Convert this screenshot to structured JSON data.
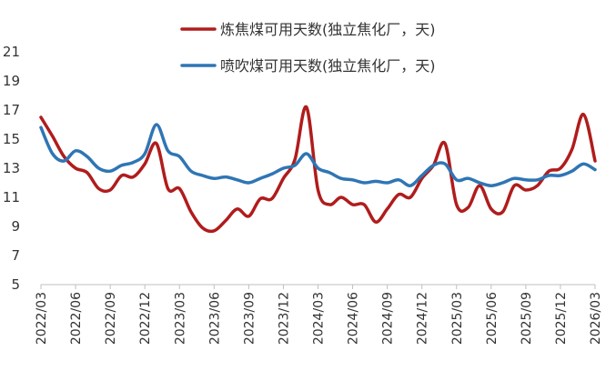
{
  "chart_data": {
    "type": "line",
    "title": "",
    "xlabel": "",
    "ylabel": "",
    "ylim": [
      5,
      21
    ],
    "yticks": [
      5,
      7,
      9,
      11,
      13,
      15,
      17,
      19,
      21
    ],
    "ytick_labels": [
      "5",
      "7",
      "9",
      "11",
      "13",
      "15",
      "17",
      "19",
      "21"
    ],
    "xlim": [
      "2022/03",
      "2026/03"
    ],
    "xtick_labels": [
      "2022/03",
      "2022/06",
      "2022/09",
      "2022/12",
      "2023/03",
      "2023/06",
      "2023/09",
      "2023/12",
      "2024/03",
      "2024/06",
      "2024/09",
      "2024/12",
      "2025/03",
      "2025/06",
      "2025/09",
      "2025/12",
      "2026/03"
    ],
    "grid": false,
    "legend_position": "top-center",
    "series": [
      {
        "name": "炼焦煤可用天数(独立焦化厂，天)",
        "color": "#B01C1C",
        "x": [
          "2022/03",
          "2022/04",
          "2022/05",
          "2022/06",
          "2022/07",
          "2022/08",
          "2022/09",
          "2022/10",
          "2022/11",
          "2022/12",
          "2023/01",
          "2023/02",
          "2023/03",
          "2023/04",
          "2023/05",
          "2023/06",
          "2023/07",
          "2023/08",
          "2023/09",
          "2023/10",
          "2023/11",
          "2023/12",
          "2024/01",
          "2024/02",
          "2024/03",
          "2024/04",
          "2024/05",
          "2024/06",
          "2024/07",
          "2024/08",
          "2024/09",
          "2024/10",
          "2024/11",
          "2024/12",
          "2025/01",
          "2025/02",
          "2025/03",
          "2025/04",
          "2025/05",
          "2025/06",
          "2025/07",
          "2025/08",
          "2025/09",
          "2025/10",
          "2025/11",
          "2025/12",
          "2026/01",
          "2026/02",
          "2026/03"
        ],
        "values": [
          16.5,
          15.2,
          13.8,
          13.0,
          12.7,
          11.6,
          11.5,
          12.5,
          12.4,
          13.3,
          14.7,
          11.6,
          11.6,
          10.0,
          8.9,
          8.7,
          9.4,
          10.2,
          9.7,
          10.9,
          10.9,
          12.3,
          13.6,
          17.2,
          11.5,
          10.5,
          11.0,
          10.5,
          10.5,
          9.3,
          10.2,
          11.2,
          11.0,
          12.3,
          13.2,
          14.7,
          10.5,
          10.3,
          11.8,
          10.2,
          10.0,
          11.8,
          11.5,
          11.8,
          12.8,
          13.0,
          14.3,
          16.7,
          13.5
        ]
      },
      {
        "name": "喷吹煤可用天数(独立焦化厂，天)",
        "color": "#2F75B5",
        "x": [
          "2022/03",
          "2022/04",
          "2022/05",
          "2022/06",
          "2022/07",
          "2022/08",
          "2022/09",
          "2022/10",
          "2022/11",
          "2022/12",
          "2023/01",
          "2023/02",
          "2023/03",
          "2023/04",
          "2023/05",
          "2023/06",
          "2023/07",
          "2023/08",
          "2023/09",
          "2023/10",
          "2023/11",
          "2023/12",
          "2024/01",
          "2024/02",
          "2024/03",
          "2024/04",
          "2024/05",
          "2024/06",
          "2024/07",
          "2024/08",
          "2024/09",
          "2024/10",
          "2024/11",
          "2024/12",
          "2025/01",
          "2025/02",
          "2025/03",
          "2025/04",
          "2025/05",
          "2025/06",
          "2025/07",
          "2025/08",
          "2025/09",
          "2025/10",
          "2025/11",
          "2025/12",
          "2026/01",
          "2026/02",
          "2026/03"
        ],
        "values": [
          15.8,
          14.0,
          13.5,
          14.2,
          13.8,
          13.0,
          12.8,
          13.2,
          13.4,
          14.0,
          16.0,
          14.2,
          13.8,
          12.8,
          12.5,
          12.3,
          12.4,
          12.2,
          12.0,
          12.3,
          12.6,
          13.0,
          13.2,
          14.0,
          13.0,
          12.7,
          12.3,
          12.2,
          12.0,
          12.1,
          12.0,
          12.2,
          11.8,
          12.5,
          13.2,
          13.3,
          12.2,
          12.3,
          12.0,
          11.8,
          12.0,
          12.3,
          12.2,
          12.2,
          12.5,
          12.5,
          12.8,
          13.3,
          12.9
        ]
      }
    ]
  }
}
